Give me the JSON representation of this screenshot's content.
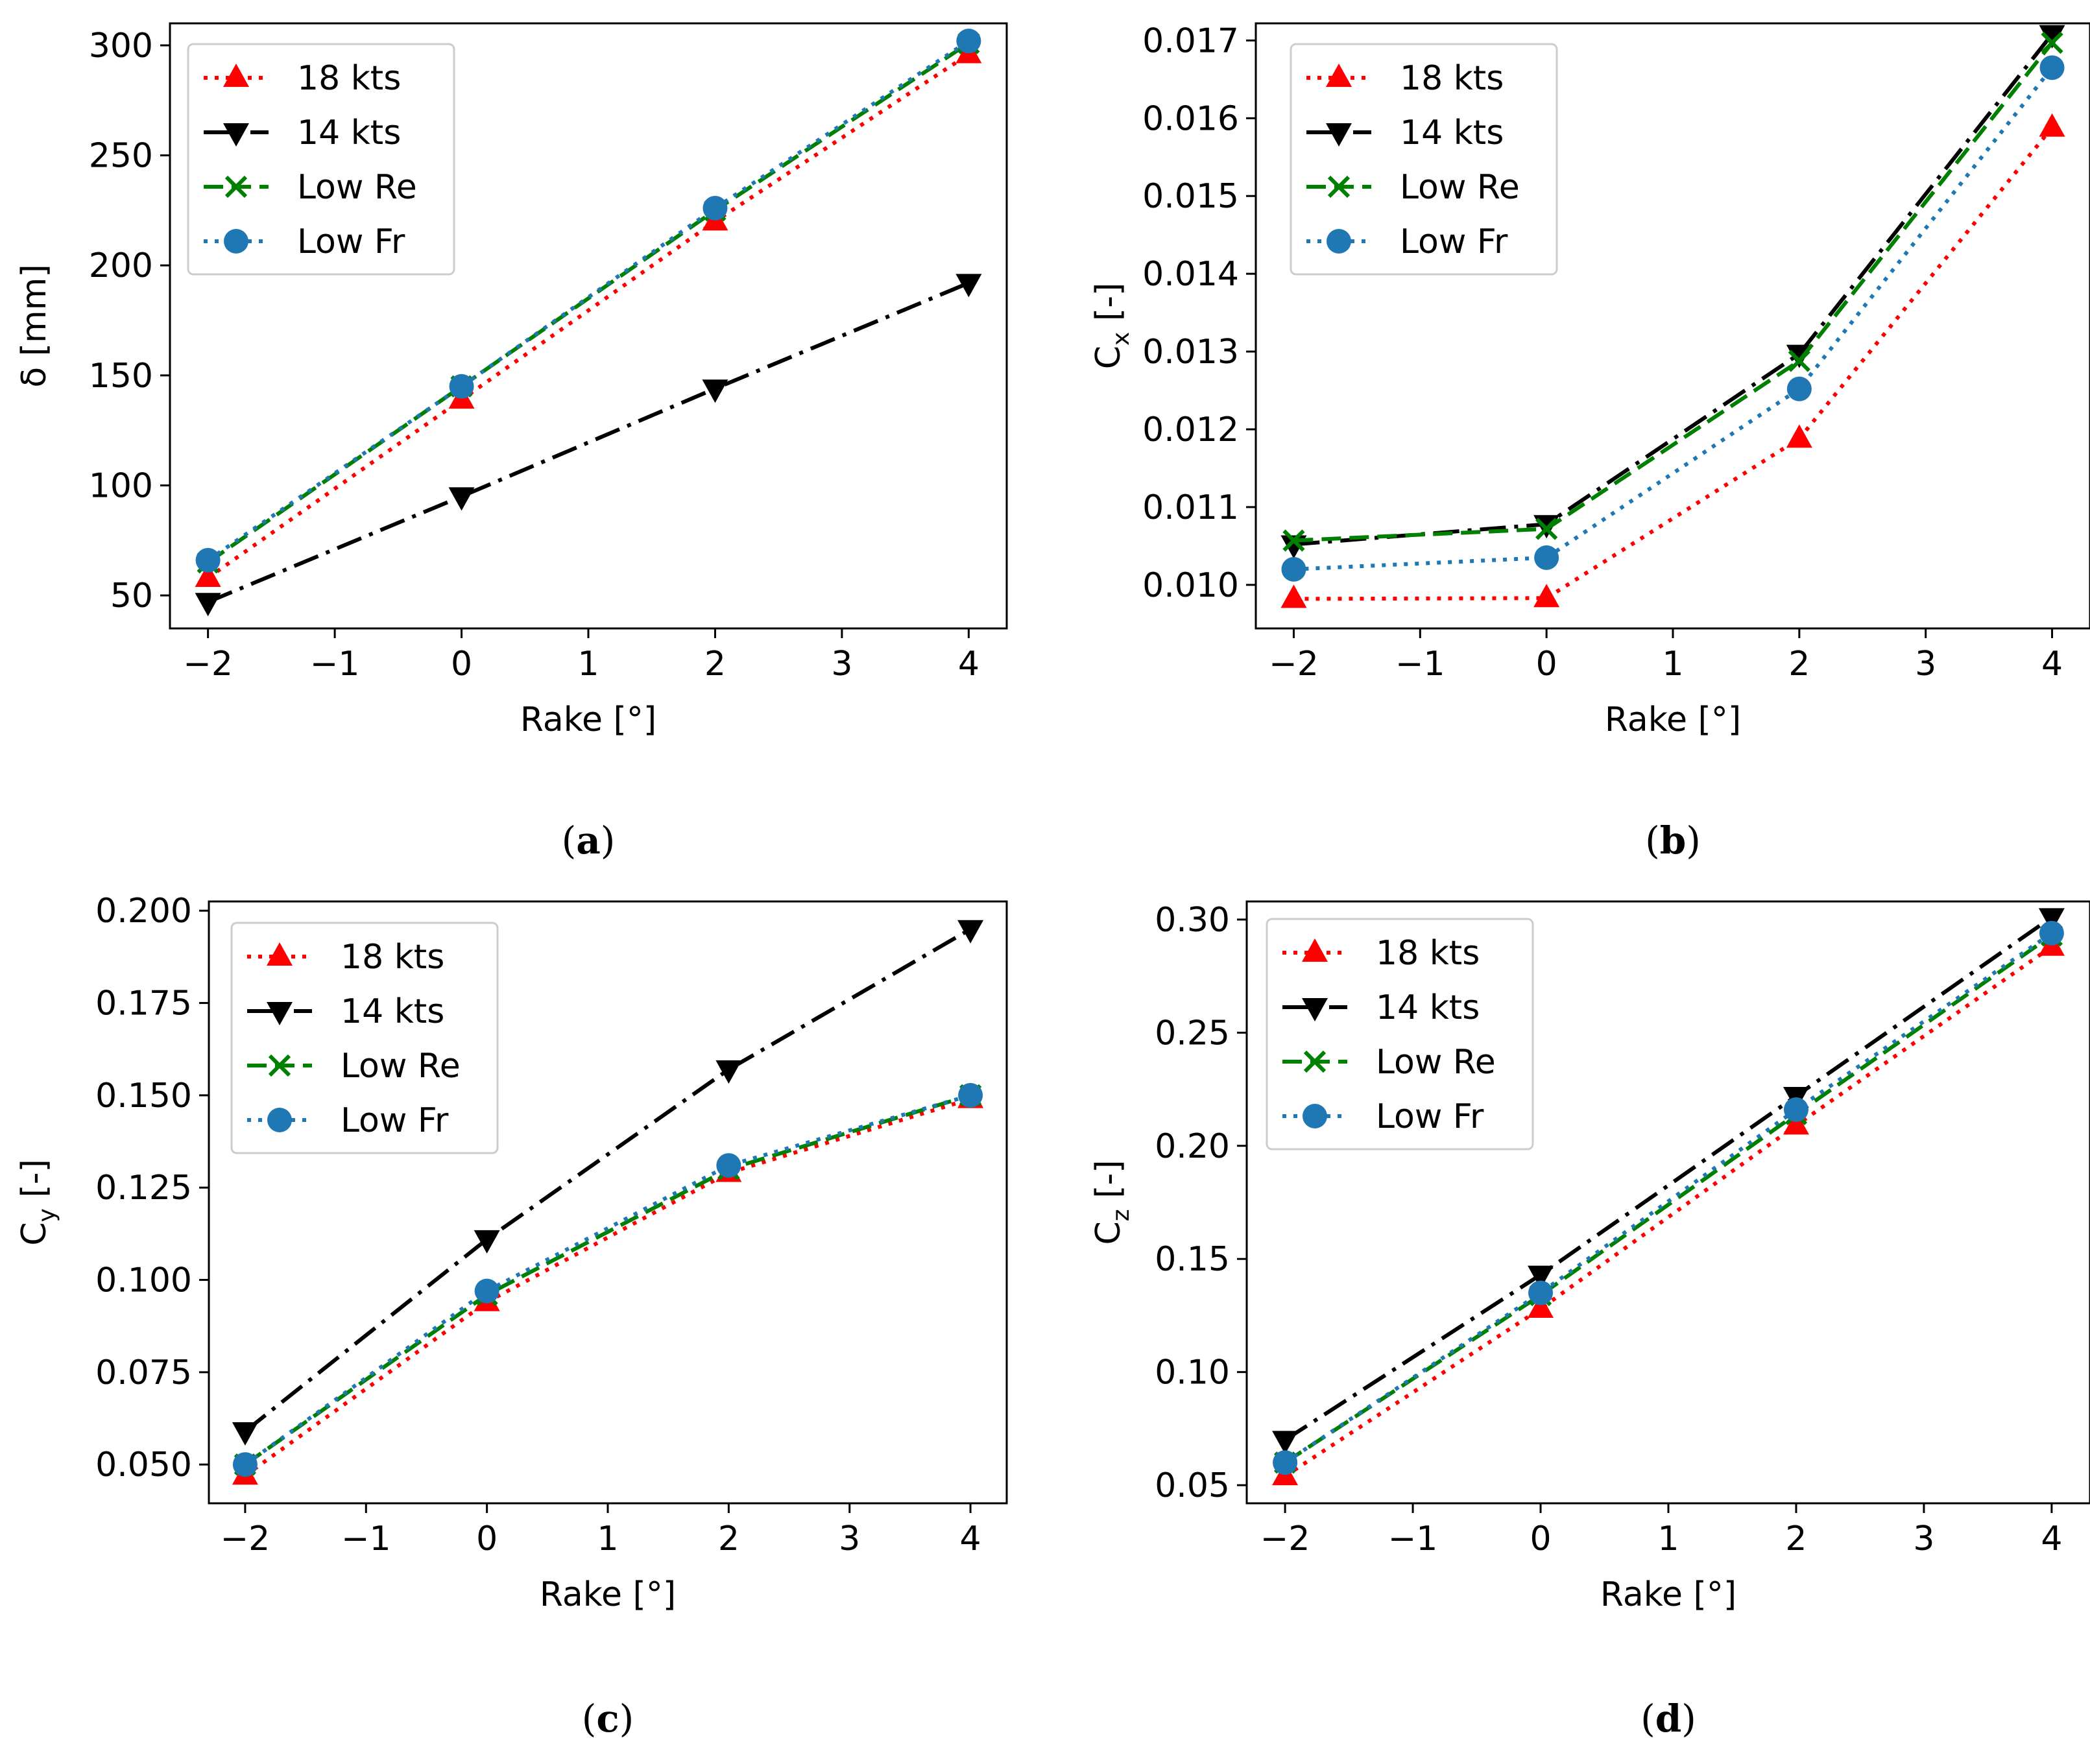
{
  "chart_data": [
    {
      "type": "line",
      "panel": "(a)",
      "xlabel": "Rake [°]",
      "ylabel": "δ [mm]",
      "xlim": [
        -2.3,
        4.3
      ],
      "ylim": [
        35,
        310
      ],
      "xticks": [
        -2,
        -1,
        0,
        1,
        2,
        3,
        4
      ],
      "xtick_labels": [
        "−2",
        "−1",
        "0",
        "1",
        "2",
        "3",
        "4"
      ],
      "yticks": [
        50,
        100,
        150,
        200,
        250,
        300
      ],
      "ytick_labels": [
        "50",
        "100",
        "150",
        "200",
        "250",
        "300"
      ],
      "legend": "top-left",
      "grid": false,
      "x": [
        -2,
        0,
        2,
        4
      ],
      "series": [
        {
          "name": "18 kts",
          "values": [
            58,
            139,
            220,
            296
          ],
          "color": "#ff0000",
          "marker": "triangle-up",
          "line": "dotted"
        },
        {
          "name": "14 kts",
          "values": [
            47,
            95,
            144,
            192
          ],
          "color": "#000000",
          "marker": "triangle-down",
          "line": "dashdot"
        },
        {
          "name": "Low Re",
          "values": [
            65,
            145,
            225,
            301
          ],
          "color": "#008000",
          "marker": "x",
          "line": "dashed"
        },
        {
          "name": "Low Fr",
          "values": [
            66,
            145,
            226,
            302
          ],
          "color": "#1f77b4",
          "marker": "circle",
          "line": "dotted"
        }
      ]
    },
    {
      "type": "line",
      "panel": "(b)",
      "xlabel": "Rake [°]",
      "ylabel": "C",
      "ylabel_sub": "x",
      "ylabel_suffix": " [-]",
      "xlim": [
        -2.3,
        4.3
      ],
      "ylim": [
        0.00944,
        0.01722
      ],
      "xticks": [
        -2,
        -1,
        0,
        1,
        2,
        3,
        4
      ],
      "xtick_labels": [
        "−2",
        "−1",
        "0",
        "1",
        "2",
        "3",
        "4"
      ],
      "yticks": [
        0.01,
        0.011,
        0.012,
        0.013,
        0.014,
        0.015,
        0.016,
        0.017
      ],
      "ytick_labels": [
        "0.010",
        "0.011",
        "0.012",
        "0.013",
        "0.014",
        "0.015",
        "0.016",
        "0.017"
      ],
      "legend": "top-left",
      "grid": false,
      "x": [
        -2,
        0,
        2,
        4
      ],
      "series": [
        {
          "name": "18 kts",
          "values": [
            0.00982,
            0.00983,
            0.01188,
            0.01588
          ],
          "color": "#ff0000",
          "marker": "triangle-up",
          "line": "dotted"
        },
        {
          "name": "14 kts",
          "values": [
            0.01052,
            0.01078,
            0.01297,
            0.01708
          ],
          "color": "#000000",
          "marker": "triangle-down",
          "line": "dashdot"
        },
        {
          "name": "Low Re",
          "values": [
            0.01057,
            0.01072,
            0.01288,
            0.01697
          ],
          "color": "#008000",
          "marker": "x",
          "line": "dashed"
        },
        {
          "name": "Low Fr",
          "values": [
            0.0102,
            0.01035,
            0.01252,
            0.01665
          ],
          "color": "#1f77b4",
          "marker": "circle",
          "line": "dotted"
        }
      ]
    },
    {
      "type": "line",
      "panel": "(c)",
      "xlabel": "Rake [°]",
      "ylabel": "C",
      "ylabel_sub": "y",
      "ylabel_suffix": " [-]",
      "xlim": [
        -2.3,
        4.3
      ],
      "ylim": [
        0.0395,
        0.2025
      ],
      "xticks": [
        -2,
        -1,
        0,
        1,
        2,
        3,
        4
      ],
      "xtick_labels": [
        "−2",
        "−1",
        "0",
        "1",
        "2",
        "3",
        "4"
      ],
      "yticks": [
        0.05,
        0.075,
        0.1,
        0.125,
        0.15,
        0.175,
        0.2
      ],
      "ytick_labels": [
        "0.050",
        "0.075",
        "0.100",
        "0.125",
        "0.150",
        "0.175",
        "0.200"
      ],
      "legend": "top-left",
      "grid": false,
      "x": [
        -2,
        0,
        2,
        4
      ],
      "series": [
        {
          "name": "18 kts",
          "values": [
            0.047,
            0.094,
            0.129,
            0.149
          ],
          "color": "#ff0000",
          "marker": "triangle-up",
          "line": "dotted"
        },
        {
          "name": "14 kts",
          "values": [
            0.059,
            0.111,
            0.157,
            0.195
          ],
          "color": "#000000",
          "marker": "triangle-down",
          "line": "dashdot"
        },
        {
          "name": "Low Re",
          "values": [
            0.05,
            0.096,
            0.13,
            0.15
          ],
          "color": "#008000",
          "marker": "x",
          "line": "dashed"
        },
        {
          "name": "Low Fr",
          "values": [
            0.05,
            0.097,
            0.131,
            0.15
          ],
          "color": "#1f77b4",
          "marker": "circle",
          "line": "dotted"
        }
      ]
    },
    {
      "type": "line",
      "panel": "(d)",
      "xlabel": "Rake [°]",
      "ylabel": "C",
      "ylabel_sub": "z",
      "ylabel_suffix": " [-]",
      "xlim": [
        -2.3,
        4.3
      ],
      "ylim": [
        0.042,
        0.308
      ],
      "xticks": [
        -2,
        -1,
        0,
        1,
        2,
        3,
        4
      ],
      "xtick_labels": [
        "−2",
        "−1",
        "0",
        "1",
        "2",
        "3",
        "4"
      ],
      "yticks": [
        0.05,
        0.1,
        0.15,
        0.2,
        0.25,
        0.3
      ],
      "ytick_labels": [
        "0.05",
        "0.10",
        "0.15",
        "0.20",
        "0.25",
        "0.30"
      ],
      "legend": "top-left",
      "grid": false,
      "x": [
        -2,
        0,
        2,
        4
      ],
      "series": [
        {
          "name": "18 kts",
          "values": [
            0.054,
            0.128,
            0.209,
            0.288
          ],
          "color": "#ff0000",
          "marker": "triangle-up",
          "line": "dotted"
        },
        {
          "name": "14 kts",
          "values": [
            0.07,
            0.143,
            0.222,
            0.301
          ],
          "color": "#000000",
          "marker": "triangle-down",
          "line": "dashdot"
        },
        {
          "name": "Low Re",
          "values": [
            0.06,
            0.134,
            0.214,
            0.293
          ],
          "color": "#008000",
          "marker": "x",
          "line": "dashed"
        },
        {
          "name": "Low Fr",
          "values": [
            0.06,
            0.135,
            0.216,
            0.294
          ],
          "color": "#1f77b4",
          "marker": "circle",
          "line": "dotted"
        }
      ]
    }
  ]
}
